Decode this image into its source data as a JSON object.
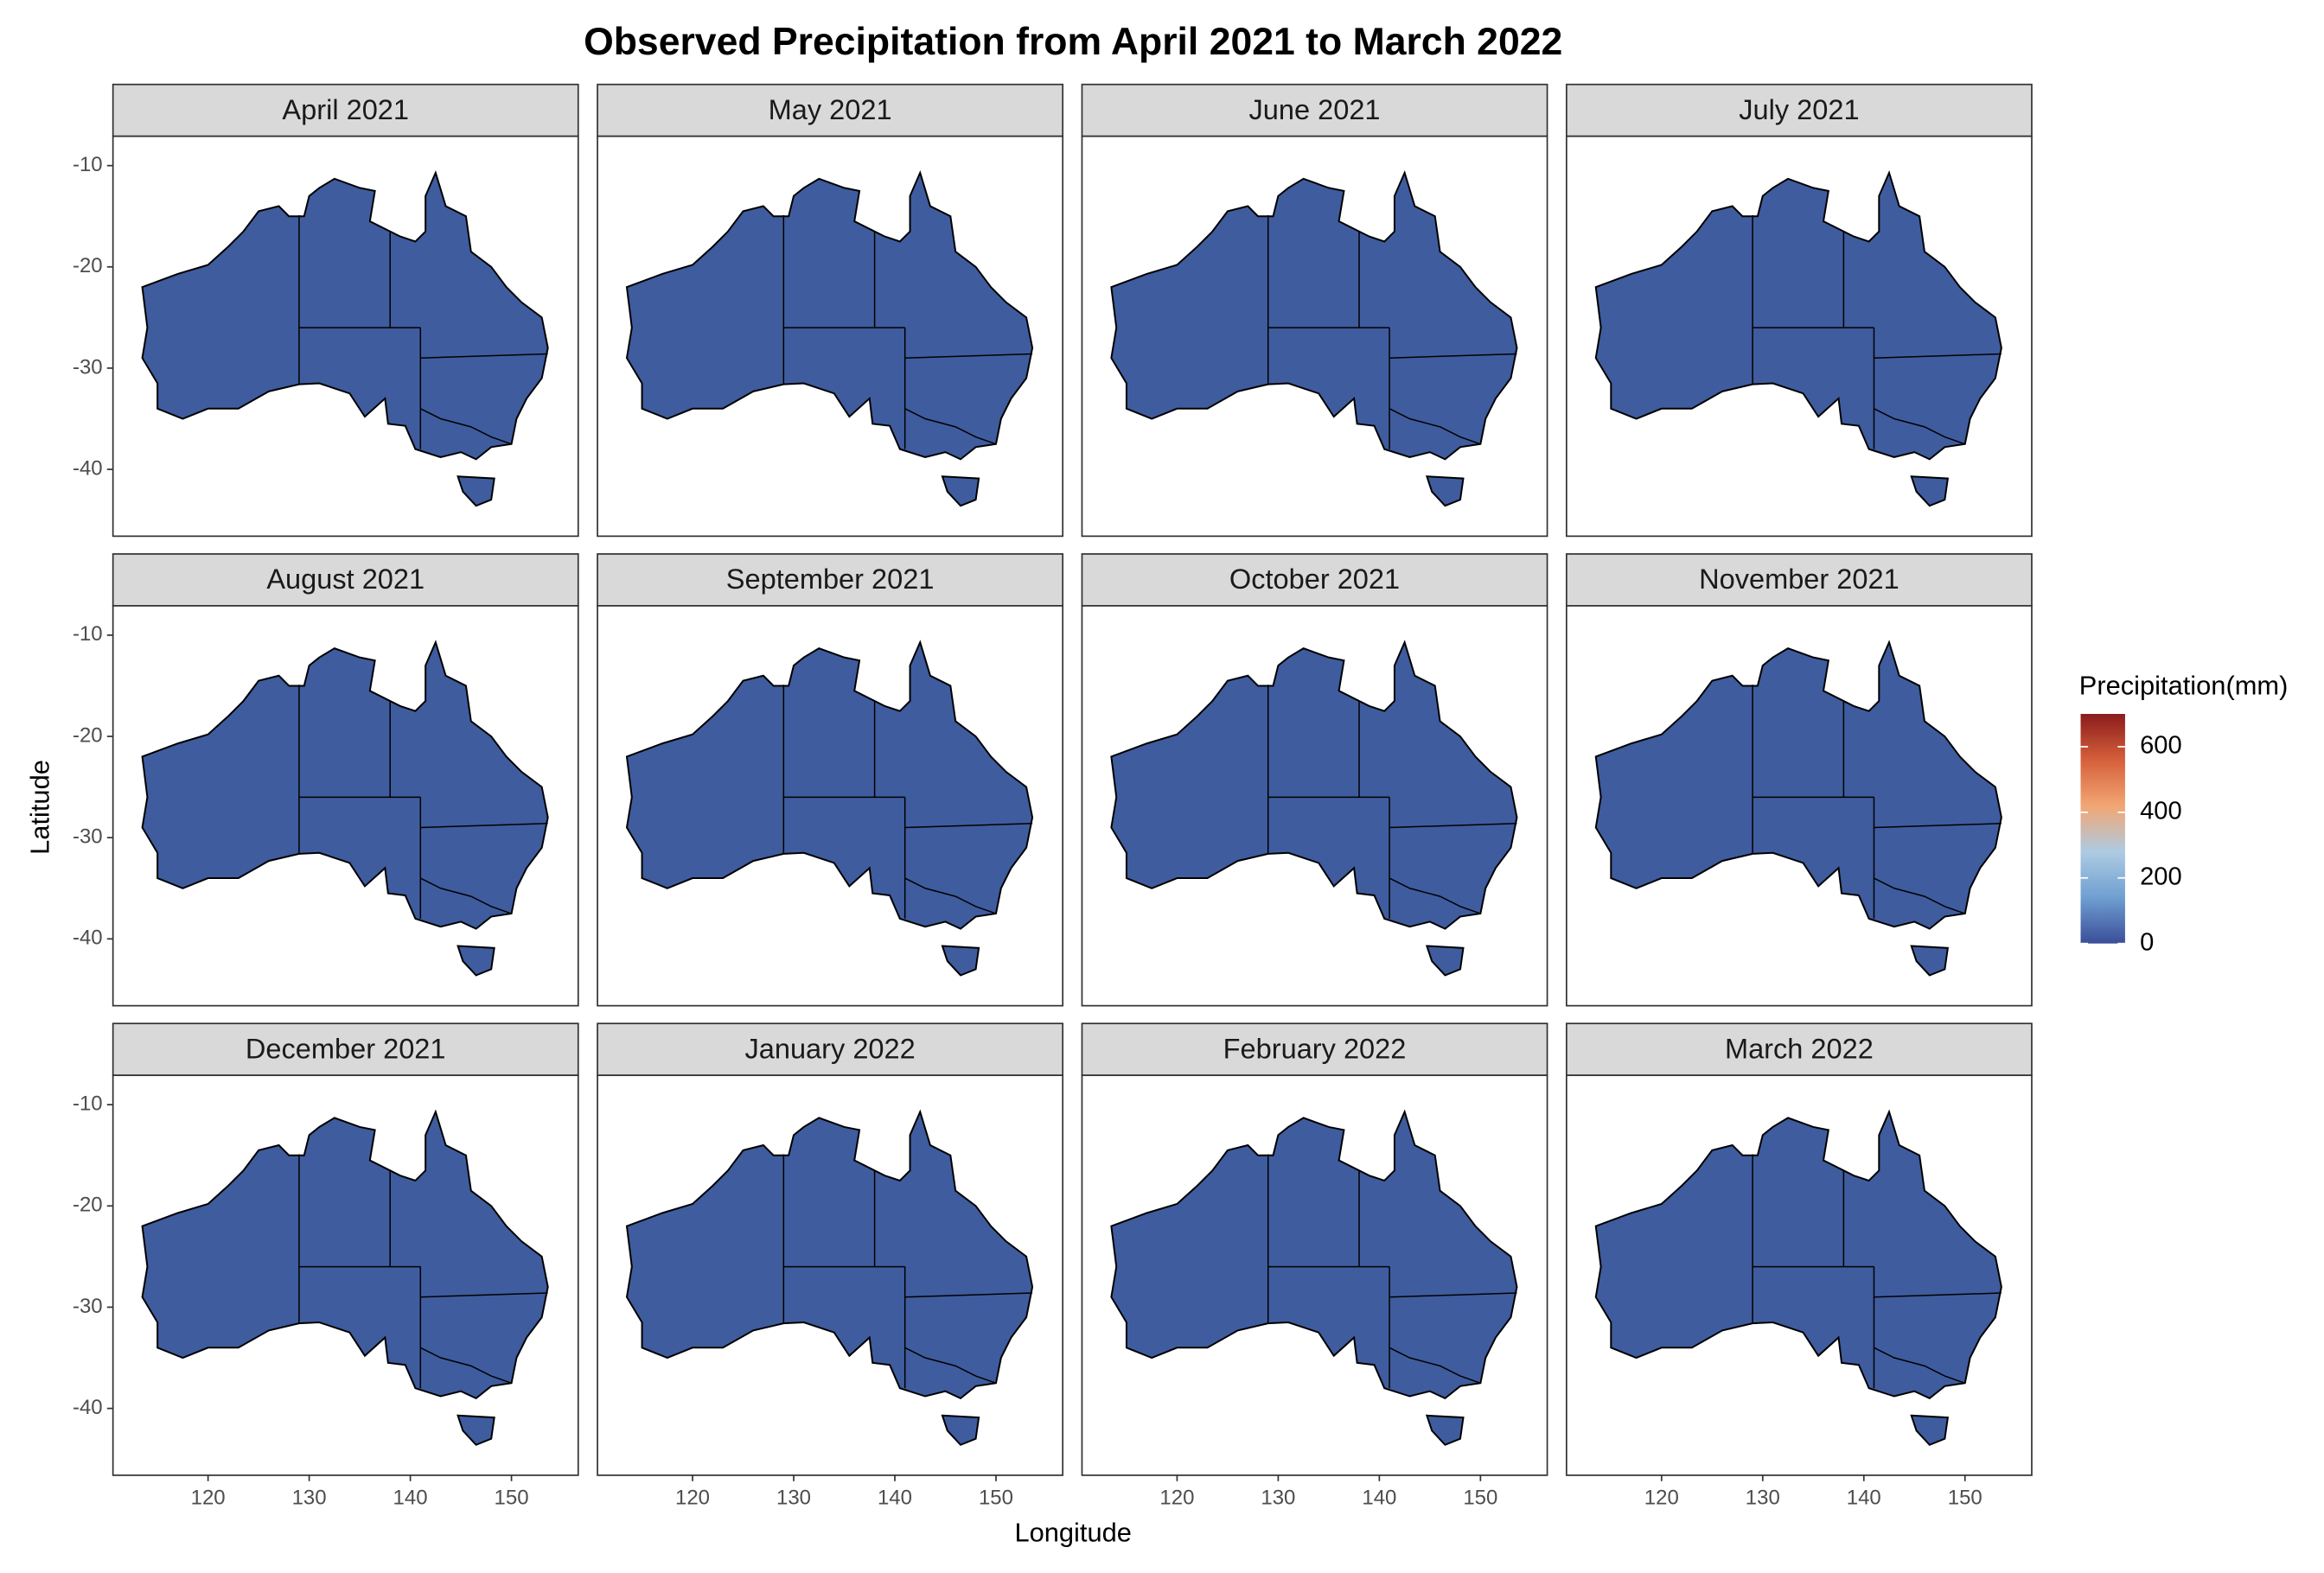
{
  "chart_data": {
    "type": "facet-map",
    "title": "Observed Precipitation from April 2021 to March 2022",
    "xlabel": "Longitude",
    "ylabel": "Latitude",
    "panels": [
      "April 2021",
      "May 2021",
      "June 2021",
      "July 2021",
      "August 2021",
      "September 2021",
      "October 2021",
      "November 2021",
      "December 2021",
      "January 2022",
      "February 2022",
      "March 2022"
    ],
    "columns": 4,
    "xlim": [
      110.6,
      156.6
    ],
    "ylim": [
      -46.6,
      -7.1
    ],
    "xticks": [
      120,
      130,
      140,
      150
    ],
    "yticks": [
      -10,
      -20,
      -30,
      -40
    ],
    "legend": {
      "title": "Precipitation(mm)",
      "limits": [
        0,
        700
      ],
      "ticks": [
        0,
        200,
        400,
        600
      ],
      "colors": [
        "#3a4e98",
        "#6f9fd2",
        "#aecbe2",
        "#f2a673",
        "#d5603b",
        "#8a1b1b"
      ]
    },
    "map_color": "#3f5c9e"
  }
}
